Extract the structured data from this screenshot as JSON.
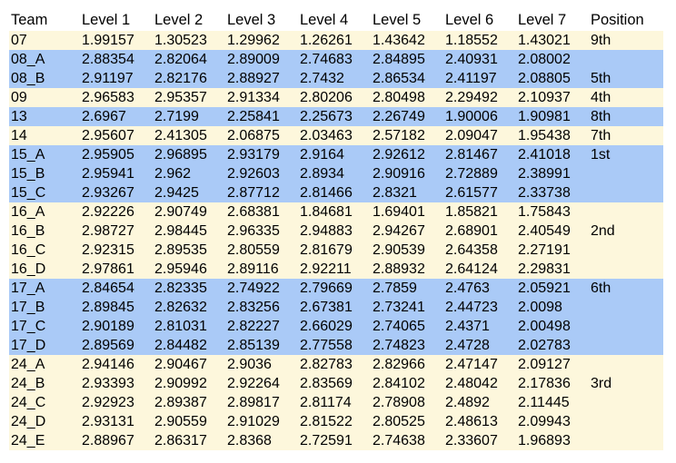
{
  "columns": [
    "Team",
    "Level 1",
    "Level 2",
    "Level 3",
    "Level 4",
    "Level 5",
    "Level 6",
    "Level 7",
    "Position"
  ],
  "colors": {
    "band_cream": "#fdf7dc",
    "band_blue": "#aacaf7"
  },
  "rows": [
    {
      "group": 0,
      "cells": [
        "07",
        "1.99157",
        "1.30523",
        "1.29962",
        "1.26261",
        "1.43642",
        "1.18552",
        "1.43021",
        "9th"
      ]
    },
    {
      "group": 1,
      "cells": [
        "08_A",
        "2.88354",
        "2.82064",
        "2.89009",
        "2.74683",
        "2.84895",
        "2.40931",
        "2.08002",
        ""
      ]
    },
    {
      "group": 1,
      "cells": [
        "08_B",
        "2.91197",
        "2.82176",
        "2.88927",
        "2.7432",
        "2.86534",
        "2.41197",
        "2.08805",
        "5th"
      ]
    },
    {
      "group": 0,
      "cells": [
        "09",
        "2.96583",
        "2.95357",
        "2.91334",
        "2.80206",
        "2.80498",
        "2.29492",
        "2.10937",
        "4th"
      ]
    },
    {
      "group": 1,
      "cells": [
        "13",
        "2.6967",
        "2.7199",
        "2.25841",
        "2.25673",
        "2.26749",
        "1.90006",
        "1.90981",
        "8th"
      ]
    },
    {
      "group": 0,
      "cells": [
        "14",
        "2.95607",
        "2.41305",
        "2.06875",
        "2.03463",
        "2.57182",
        "2.09047",
        "1.95438",
        "7th"
      ]
    },
    {
      "group": 1,
      "cells": [
        "15_A",
        "2.95905",
        "2.96895",
        "2.93179",
        "2.9164",
        "2.92612",
        "2.81467",
        "2.41018",
        "1st"
      ]
    },
    {
      "group": 1,
      "cells": [
        "15_B",
        "2.95941",
        "2.962",
        "2.92603",
        "2.8934",
        "2.90916",
        "2.72889",
        "2.38991",
        ""
      ]
    },
    {
      "group": 1,
      "cells": [
        "15_C",
        "2.93267",
        "2.9425",
        "2.87712",
        "2.81466",
        "2.8321",
        "2.61577",
        "2.33738",
        ""
      ]
    },
    {
      "group": 0,
      "cells": [
        "16_A",
        "2.92226",
        "2.90749",
        "2.68381",
        "1.84681",
        "1.69401",
        "1.85821",
        "1.75843",
        ""
      ]
    },
    {
      "group": 0,
      "cells": [
        "16_B",
        "2.98727",
        "2.98445",
        "2.96335",
        "2.94883",
        "2.94267",
        "2.68901",
        "2.40549",
        "2nd"
      ]
    },
    {
      "group": 0,
      "cells": [
        "16_C",
        "2.92315",
        "2.89535",
        "2.80559",
        "2.81679",
        "2.90539",
        "2.64358",
        "2.27191",
        ""
      ]
    },
    {
      "group": 0,
      "cells": [
        "16_D",
        "2.97861",
        "2.95946",
        "2.89116",
        "2.92211",
        "2.88932",
        "2.64124",
        "2.29831",
        ""
      ]
    },
    {
      "group": 1,
      "cells": [
        "17_A",
        "2.84654",
        "2.82335",
        "2.74922",
        "2.79669",
        "2.7859",
        "2.4763",
        "2.05921",
        "6th"
      ]
    },
    {
      "group": 1,
      "cells": [
        "17_B",
        "2.89845",
        "2.82632",
        "2.83256",
        "2.67381",
        "2.73241",
        "2.44723",
        "2.0098",
        ""
      ]
    },
    {
      "group": 1,
      "cells": [
        "17_C",
        "2.90189",
        "2.81031",
        "2.82227",
        "2.66029",
        "2.74065",
        "2.4371",
        "2.00498",
        ""
      ]
    },
    {
      "group": 1,
      "cells": [
        "17_D",
        "2.89569",
        "2.84482",
        "2.85139",
        "2.77558",
        "2.74823",
        "2.4728",
        "2.02783",
        ""
      ]
    },
    {
      "group": 0,
      "cells": [
        "24_A",
        "2.94146",
        "2.90467",
        "2.9036",
        "2.82783",
        "2.82966",
        "2.47147",
        "2.09127",
        ""
      ]
    },
    {
      "group": 0,
      "cells": [
        "24_B",
        "2.93393",
        "2.90992",
        "2.92264",
        "2.83569",
        "2.84102",
        "2.48042",
        "2.17836",
        "3rd"
      ]
    },
    {
      "group": 0,
      "cells": [
        "24_C",
        "2.92923",
        "2.89387",
        "2.89817",
        "2.81174",
        "2.78908",
        "2.4892",
        "2.11445",
        ""
      ]
    },
    {
      "group": 0,
      "cells": [
        "24_D",
        "2.93131",
        "2.90559",
        "2.91029",
        "2.81522",
        "2.80525",
        "2.48613",
        "2.09943",
        ""
      ]
    },
    {
      "group": 0,
      "cells": [
        "24_E",
        "2.88967",
        "2.86317",
        "2.8368",
        "2.72591",
        "2.74638",
        "2.33607",
        "1.96893",
        ""
      ]
    }
  ]
}
